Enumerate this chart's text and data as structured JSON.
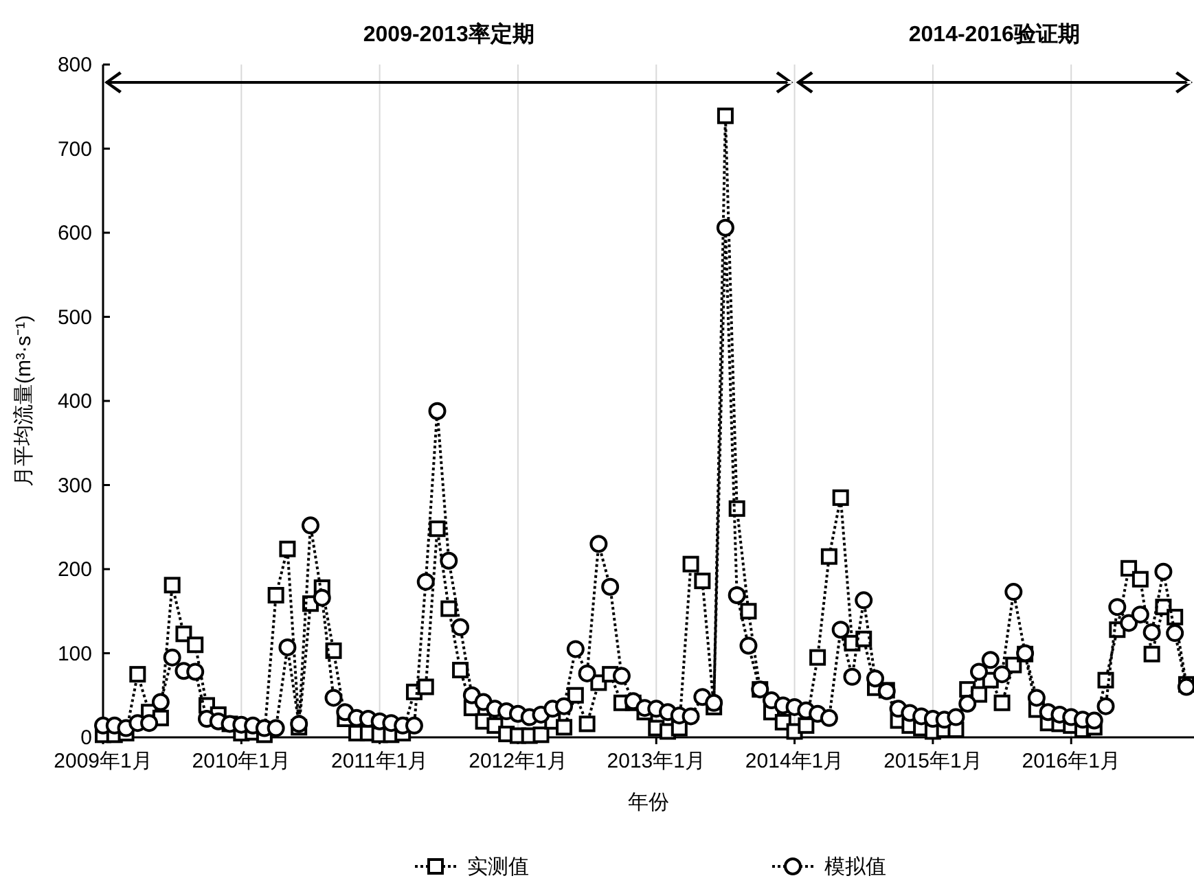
{
  "chart_data": {
    "type": "line",
    "xlabel": "年份",
    "ylabel": "月平均流量(m³·s⁻¹)",
    "annotations": [
      "2009-2013率定期",
      "2014-2016验证期"
    ],
    "ylim": [
      0,
      800
    ],
    "yticks": [
      0,
      100,
      200,
      300,
      400,
      500,
      600,
      700,
      800
    ],
    "grid": "x",
    "legend": "bottom",
    "line_style": "dotted",
    "categories": [
      "2009年1月",
      null,
      null,
      null,
      null,
      null,
      null,
      null,
      null,
      null,
      null,
      null,
      "2010年1月",
      null,
      null,
      null,
      null,
      null,
      null,
      null,
      null,
      null,
      null,
      null,
      "2011年1月",
      null,
      null,
      null,
      null,
      null,
      null,
      null,
      null,
      null,
      null,
      null,
      "2012年1月",
      null,
      null,
      null,
      null,
      null,
      null,
      null,
      null,
      null,
      null,
      null,
      "2013年1月",
      null,
      null,
      null,
      null,
      null,
      null,
      null,
      null,
      null,
      null,
      null,
      "2014年1月",
      null,
      null,
      null,
      null,
      null,
      null,
      null,
      null,
      null,
      null,
      null,
      "2015年1月",
      null,
      null,
      null,
      null,
      null,
      null,
      null,
      null,
      null,
      null,
      null,
      "2016年1月",
      null,
      null,
      null,
      null,
      null,
      null,
      null,
      null,
      null,
      null
    ],
    "series": [
      {
        "name": "实测值",
        "color": "#000000",
        "marker": "square",
        "values": [
          3,
          3,
          5,
          75,
          30,
          23,
          181,
          123,
          110,
          38,
          27,
          16,
          5,
          6,
          3,
          169,
          224,
          12,
          159,
          178,
          103,
          22,
          5,
          5,
          3,
          3,
          5,
          54,
          60,
          248,
          153,
          80,
          35,
          19,
          14,
          4,
          2,
          2,
          3,
          19,
          12,
          50,
          16,
          65,
          75,
          41,
          41,
          30,
          11,
          7,
          11,
          206,
          186,
          36,
          739,
          272,
          150,
          57,
          30,
          18,
          7,
          14,
          95,
          215,
          285,
          112,
          117,
          59,
          56,
          20,
          14,
          11,
          7,
          9,
          9,
          57,
          51,
          68,
          41,
          86,
          99,
          33,
          17,
          16,
          14,
          9,
          12,
          68,
          128,
          201,
          188,
          99,
          155,
          143,
          63
        ]
      },
      {
        "name": "模拟值",
        "color": "#000000",
        "marker": "circle",
        "values": [
          14,
          14,
          11,
          17,
          17,
          42,
          95,
          79,
          78,
          22,
          19,
          16,
          15,
          14,
          11,
          11,
          107,
          16,
          252,
          166,
          47,
          30,
          23,
          22,
          19,
          17,
          14,
          14,
          185,
          388,
          210,
          131,
          50,
          42,
          34,
          31,
          28,
          24,
          27,
          34,
          37,
          105,
          76,
          230,
          179,
          73,
          43,
          35,
          34,
          30,
          26,
          25,
          48,
          41,
          606,
          169,
          109,
          57,
          44,
          38,
          36,
          32,
          28,
          23,
          128,
          72,
          163,
          70,
          55,
          34,
          29,
          25,
          22,
          21,
          24,
          40,
          78,
          92,
          75,
          173,
          100,
          47,
          30,
          27,
          24,
          21,
          20,
          37,
          155,
          136,
          146,
          125,
          197,
          124,
          60
        ]
      }
    ]
  }
}
